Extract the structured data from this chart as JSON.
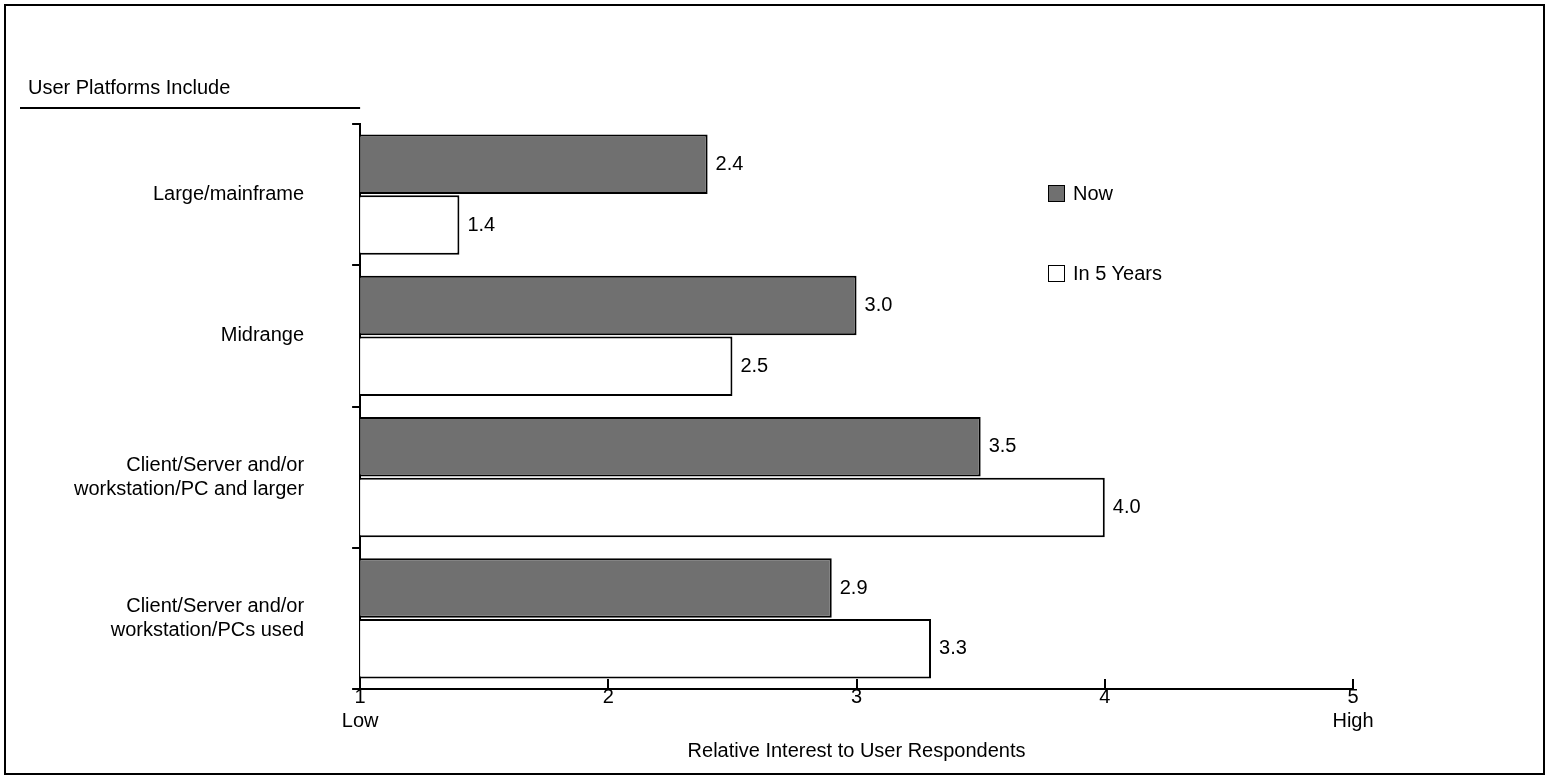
{
  "chart_data": {
    "type": "bar",
    "orientation": "horizontal",
    "ylabel": "User Platforms Include",
    "xlabel": "Relative Interest to User Respondents",
    "categories": [
      "Large/mainframe",
      "Midrange",
      "Client/Server and/or workstation/PC and larger",
      "Client/Server and/or workstation/PCs used"
    ],
    "series": [
      {
        "name": "Now",
        "color": "#707070",
        "values": [
          2.4,
          3.0,
          3.5,
          2.9
        ],
        "value_labels": [
          "2.4",
          "3.0",
          "3.5",
          "2.9"
        ]
      },
      {
        "name": "In 5 Years",
        "color": "#ffffff",
        "values": [
          1.4,
          2.5,
          4.0,
          3.3
        ],
        "value_labels": [
          "1.4",
          "2.5",
          "4.0",
          "3.3"
        ]
      }
    ],
    "xlim": [
      1,
      5
    ],
    "xticks": [
      {
        "value": 1,
        "label": "1\nLow"
      },
      2,
      3,
      4,
      {
        "value": 5,
        "label": "5\nHigh"
      }
    ],
    "grid": false,
    "legend": "top right"
  }
}
